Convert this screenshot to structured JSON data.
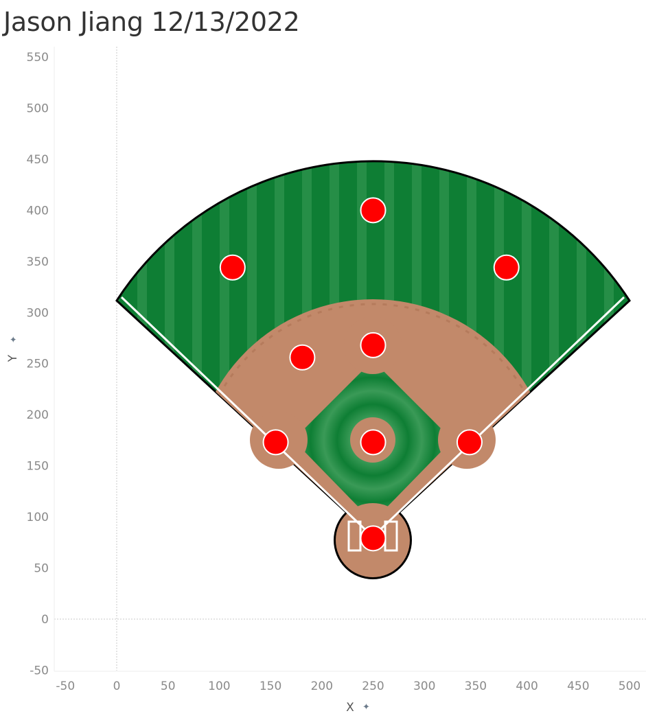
{
  "title": "Jason Jiang 12/13/2022",
  "colors": {
    "grass": "#0e7e34",
    "grass_stripe": "#3a9a57",
    "infield_grass": "#1a8540",
    "dirt": "#c2896a",
    "dirt_dark": "#a86d4e",
    "chalk": "#ffffff",
    "point": "#ff0000",
    "point_outline": "#ffffff",
    "tick_text": "#8a8a8a",
    "zero_line": "#c8c8c8"
  },
  "chart_data": {
    "type": "scatter",
    "xlabel": "X",
    "ylabel": "Y",
    "xlim": [
      -60,
      515
    ],
    "ylim": [
      -60,
      555
    ],
    "x_ticks": [
      "-50",
      "0",
      "50",
      "100",
      "150",
      "200",
      "250",
      "300",
      "350",
      "400",
      "450",
      "500"
    ],
    "y_ticks": [
      "550",
      "500",
      "450",
      "400",
      "350",
      "300",
      "250",
      "200",
      "150",
      "100",
      "50",
      "0",
      "-50"
    ],
    "zero_lines": true,
    "background_image": "baseball-field",
    "points": [
      {
        "x": 250,
        "y": 400
      },
      {
        "x": 113,
        "y": 344
      },
      {
        "x": 380,
        "y": 344
      },
      {
        "x": 250,
        "y": 268
      },
      {
        "x": 181,
        "y": 256
      },
      {
        "x": 155,
        "y": 173
      },
      {
        "x": 250,
        "y": 173
      },
      {
        "x": 344,
        "y": 173
      },
      {
        "x": 250,
        "y": 79
      }
    ]
  }
}
